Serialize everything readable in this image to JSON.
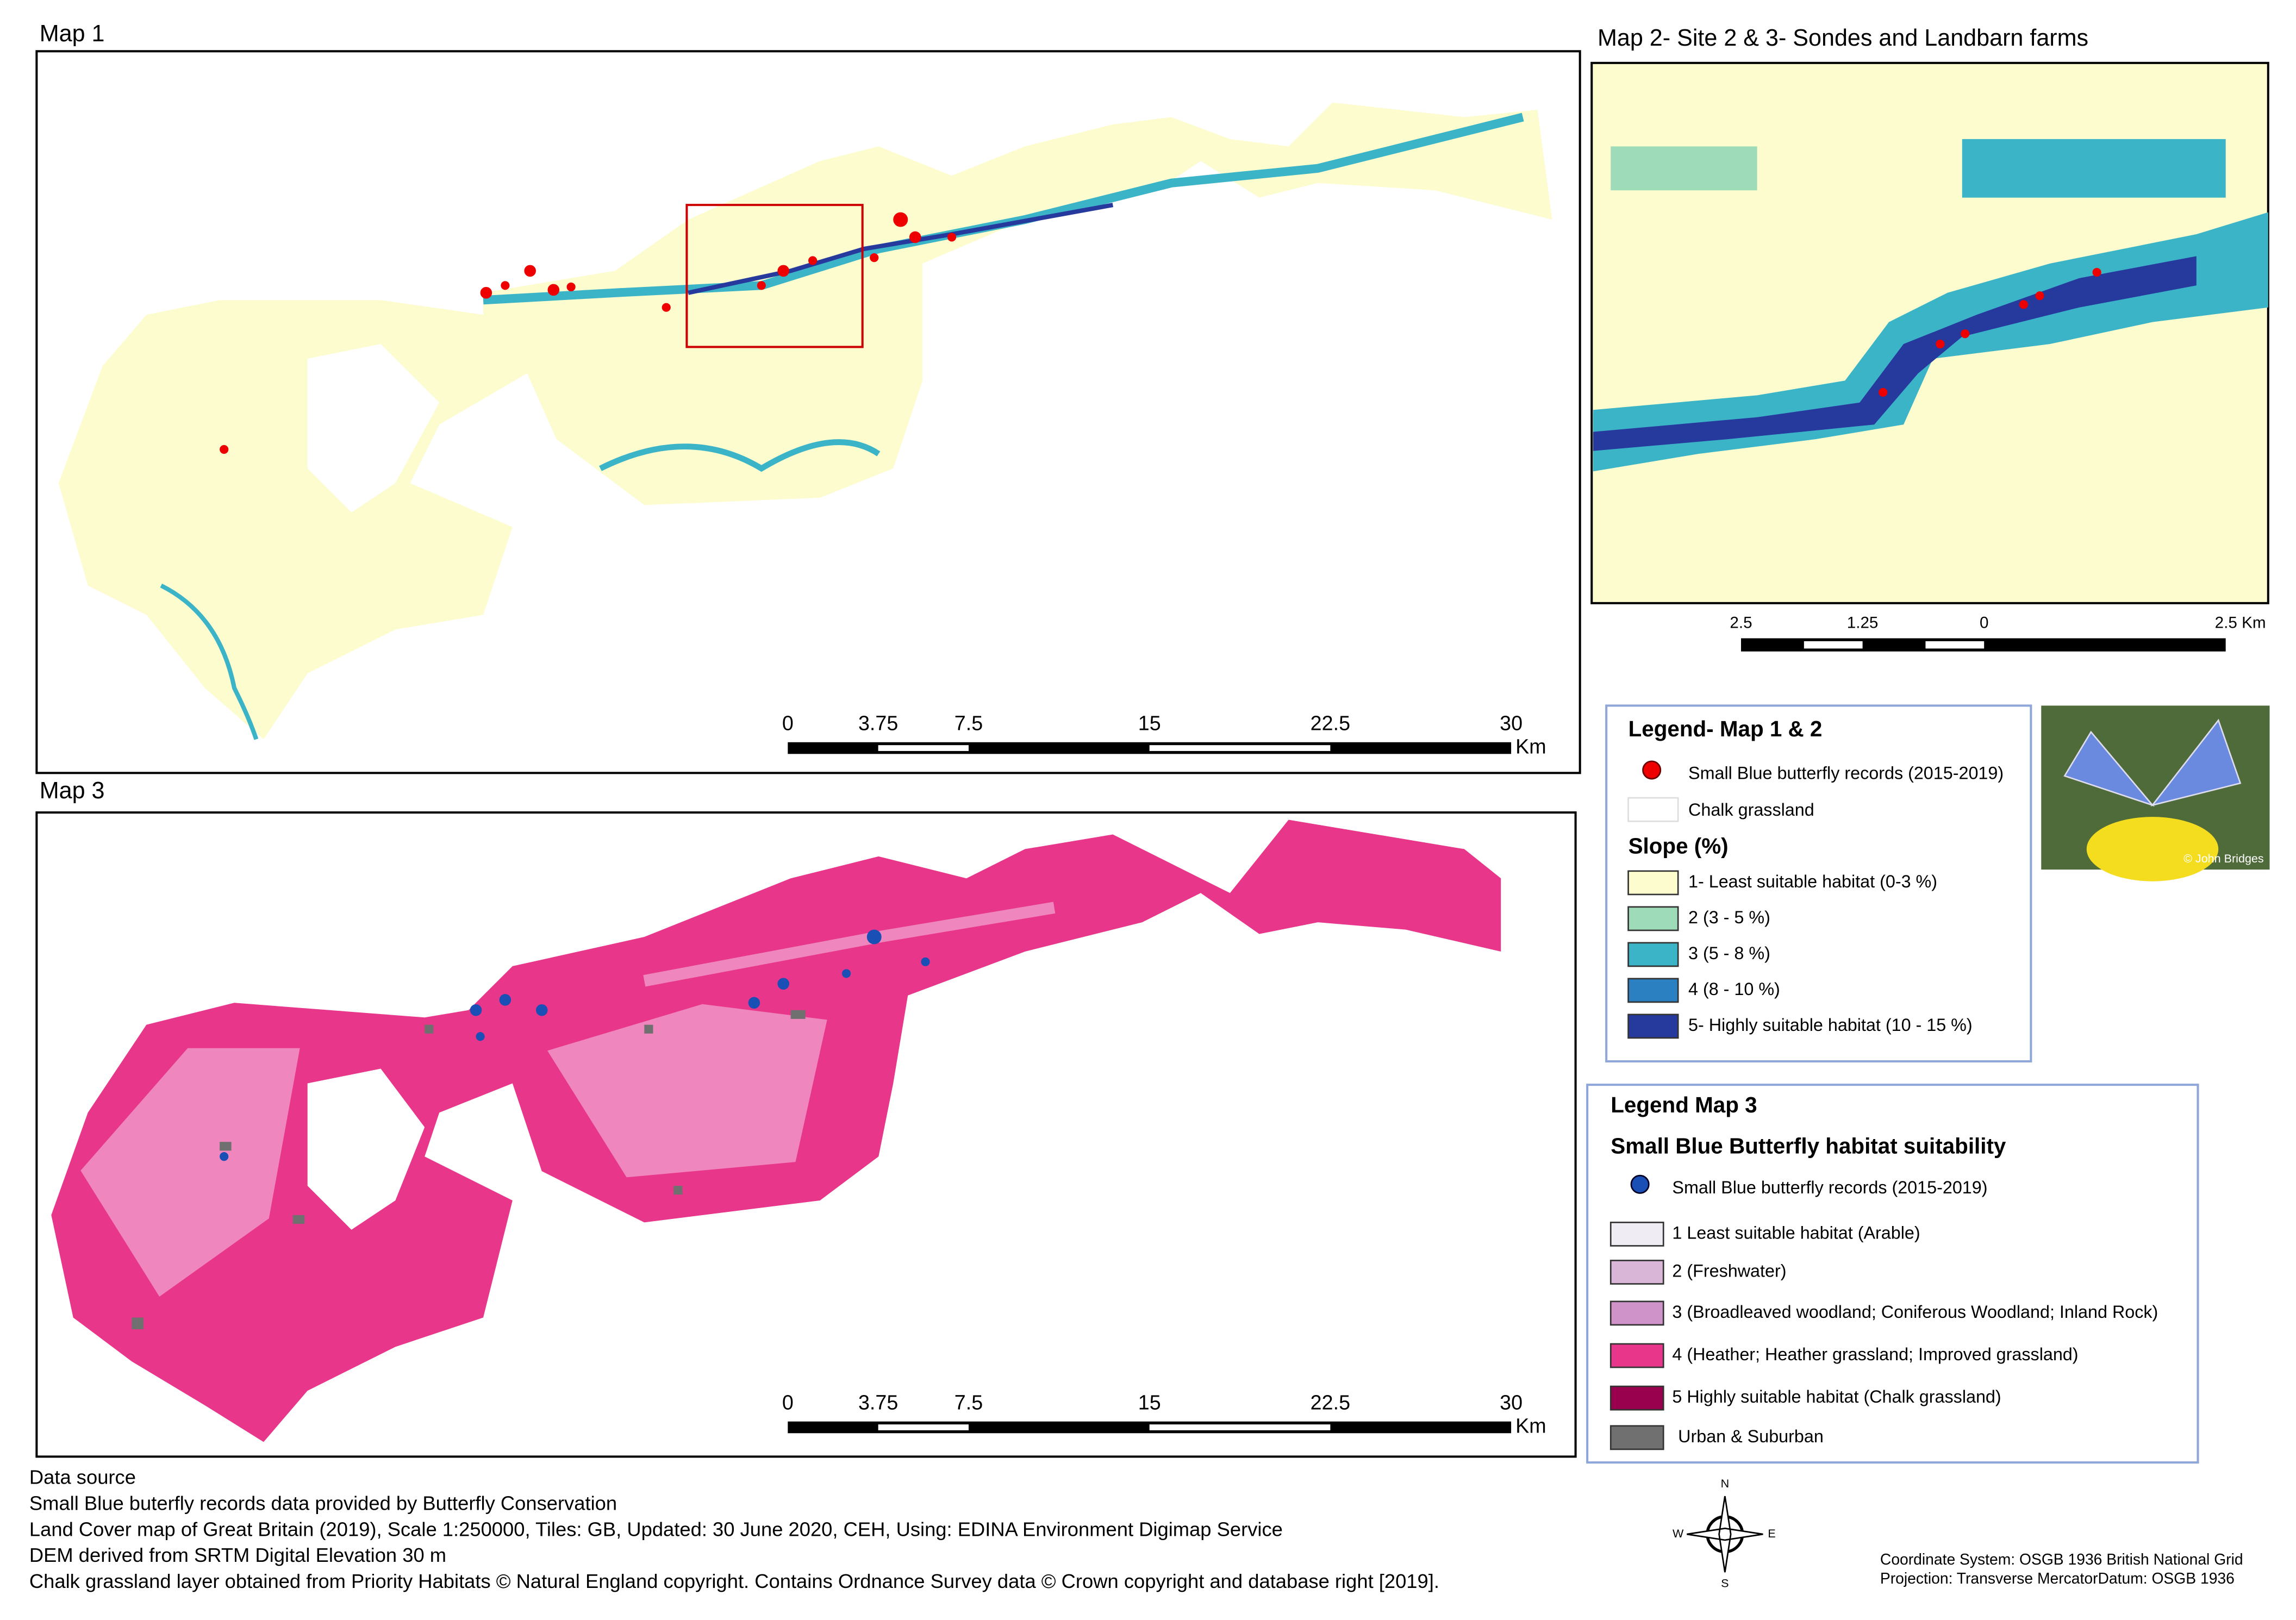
{
  "map1": {
    "title": "Map 1",
    "scale": {
      "ticks": [
        0,
        3.75,
        7.5,
        15,
        22.5,
        30
      ],
      "unit": "Km"
    }
  },
  "map2": {
    "title": "Map 2- Site 2 & 3- Sondes and Landbarn farms",
    "scale": {
      "ticks": [
        "2.5",
        "1.25",
        "0",
        "2.5 Km"
      ]
    }
  },
  "map3": {
    "title": "Map 3",
    "scale": {
      "ticks": [
        0,
        3.75,
        7.5,
        15,
        22.5,
        30
      ],
      "unit": "Km"
    }
  },
  "legend12": {
    "title": "Legend- Map 1 & 2",
    "records": "Small Blue butterfly records (2015-2019)",
    "chalk": "Chalk grassland",
    "slope_title": "Slope (%)",
    "classes": [
      {
        "label": "1- Least suitable habitat (0-3 %)",
        "color": "#fdfccf"
      },
      {
        "label": "2 (3 - 5 %)",
        "color": "#9edbb8"
      },
      {
        "label": "3 (5 - 8 %)",
        "color": "#3cb4c8"
      },
      {
        "label": "4 (8 - 10 %)",
        "color": "#2a80c0"
      },
      {
        "label": "5- Highly suitable habitat (10 - 15 %)",
        "color": "#263a9e"
      }
    ]
  },
  "legend3": {
    "title": "Legend Map 3",
    "subtitle": "Small Blue Butterfly habitat suitability",
    "records": "Small Blue butterfly records (2015-2019)",
    "classes": [
      {
        "label": "1  Least suitable habitat (Arable)",
        "color": "#f0ecf4"
      },
      {
        "label": "2 (Freshwater)",
        "color": "#d9b6d8"
      },
      {
        "label": "3 (Broadleaved woodland; Coniferous Woodland; Inland Rock)",
        "color": "#cf93c9"
      },
      {
        "label": "4 (Heather; Heather grassland; Improved grassland)",
        "color": "#e8368a"
      },
      {
        "label": "5 Highly suitable habitat (Chalk grassland)",
        "color": "#99004d"
      },
      {
        "label": "Urban & Suburban",
        "color": "#707070"
      }
    ]
  },
  "photo_credit": "© John Bridges",
  "data_source": [
    "Data source",
    "Small Blue buterfly records data provided by Butterfly Conservation",
    "Land Cover map of Great Britain (2019), Scale 1:250000, Tiles: GB, Updated: 30 June 2020, CEH, Using: EDINA Environment Digimap Service",
    "DEM derived from SRTM Digital Elevation 30 m",
    "Chalk grassland layer obtained from Priority Habitats © Natural England copyright. Contains Ordnance Survey data © Crown copyright and database right [2019]."
  ],
  "compass": {
    "n": "N",
    "e": "E",
    "s": "S",
    "w": "W"
  },
  "coordinate_system": [
    "Coordinate System: OSGB 1936 British National Grid",
    "Projection: Transverse MercatorDatum: OSGB 1936"
  ]
}
